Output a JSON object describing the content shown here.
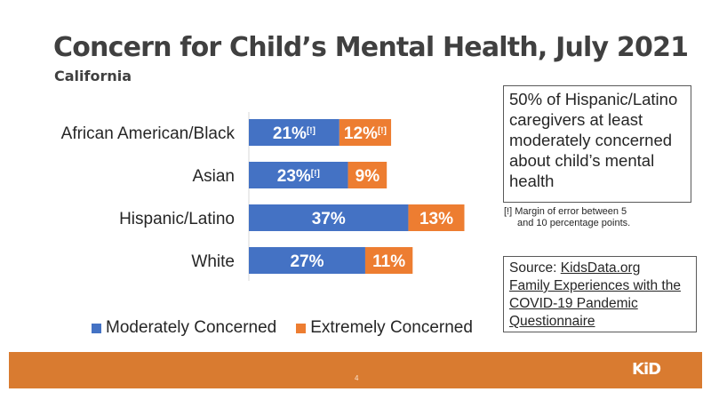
{
  "header": {
    "title": "Concern for Child’s Mental Health, July 2021",
    "subtitle": "California"
  },
  "chart_data": {
    "type": "bar",
    "orientation": "horizontal",
    "stacked": true,
    "title": "Concern for Child’s Mental Health, July 2021",
    "subtitle": "California",
    "xlabel": "",
    "ylabel": "",
    "xlim": [
      0,
      55
    ],
    "grid": false,
    "legend_position": "bottom",
    "categories": [
      "African American/Black",
      "Asian",
      "Hispanic/Latino",
      "White"
    ],
    "series": [
      {
        "name": "Moderately Concerned",
        "color": "#4472C4",
        "values": [
          21,
          23,
          37,
          27
        ],
        "labels": [
          "21%",
          "23%",
          "37%",
          "27%"
        ],
        "flags": [
          "[!]",
          "[!]",
          "",
          ""
        ]
      },
      {
        "name": "Extremely Concerned",
        "color": "#ED7D31",
        "values": [
          12,
          9,
          13,
          11
        ],
        "labels": [
          "12%",
          "9%",
          "13%",
          "11%"
        ],
        "flags": [
          "[!]",
          "",
          "",
          ""
        ]
      }
    ]
  },
  "callout": {
    "text": "50% of Hispanic/Latino caregivers at least moderately concerned about child’s mental health"
  },
  "note": {
    "line1": "[!] Margin of error between 5",
    "line2": "and 10 percentage points."
  },
  "source": {
    "prefix": "Source: ",
    "link1": "KidsData.org",
    "link2": "Family Experiences with the COVID-19 Pandemic Questionnaire"
  },
  "footer": {
    "page_number": "4",
    "logo_text": "KiD",
    "color": "#D97B30"
  }
}
